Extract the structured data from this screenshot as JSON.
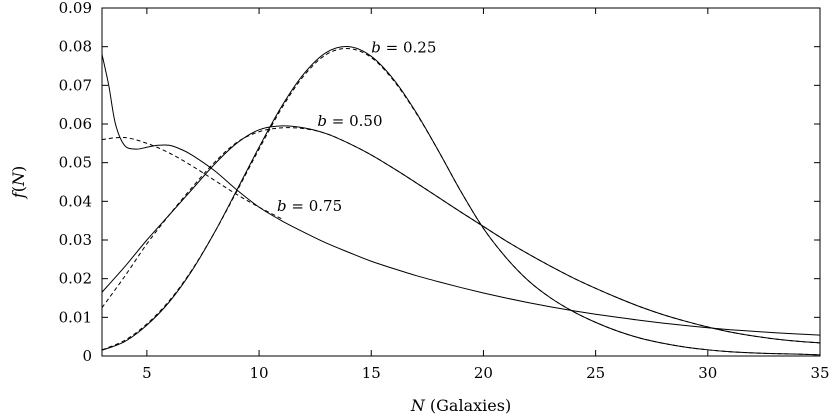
{
  "chart_data": {
    "type": "line",
    "xlabel_var": "N",
    "xlabel_rest": " (Galaxies)",
    "ylabel_var": "f",
    "ylabel_rest_open": "(",
    "ylabel_arg": "N",
    "ylabel_rest_close": ")",
    "xlim": [
      3,
      35
    ],
    "ylim": [
      0,
      0.09
    ],
    "xticks": [
      5,
      10,
      15,
      20,
      25,
      30,
      35
    ],
    "yticks": [
      0,
      0.01,
      0.02,
      0.03,
      0.04,
      0.05,
      0.06,
      0.07,
      0.08,
      0.09
    ],
    "ytick_labels": [
      "0",
      "0.01",
      "0.02",
      "0.03",
      "0.04",
      "0.05",
      "0.06",
      "0.07",
      "0.08",
      "0.09"
    ],
    "grid": false,
    "annotations": [
      {
        "var": "b",
        "text": " = 0.25",
        "x": 15.0,
        "y": 0.0785
      },
      {
        "var": "b",
        "text": " = 0.50",
        "x": 12.6,
        "y": 0.0595
      },
      {
        "var": "b",
        "text": " = 0.75",
        "x": 10.8,
        "y": 0.0375
      }
    ],
    "series": [
      {
        "style": "solid",
        "x": [
          3,
          4,
          5,
          6,
          7,
          8,
          9,
          10,
          11,
          12,
          13,
          14,
          15,
          16,
          17,
          18,
          19,
          20,
          21,
          22,
          23,
          24,
          25,
          26,
          27,
          28,
          29,
          30,
          31,
          32,
          33,
          34,
          35
        ],
        "y": [
          0.0015,
          0.0037,
          0.008,
          0.014,
          0.022,
          0.0318,
          0.0428,
          0.054,
          0.0645,
          0.073,
          0.0785,
          0.08,
          0.0775,
          0.0715,
          0.063,
          0.053,
          0.0425,
          0.033,
          0.0255,
          0.0195,
          0.015,
          0.0115,
          0.0087,
          0.0064,
          0.0046,
          0.0033,
          0.0023,
          0.0016,
          0.0011,
          0.0008,
          0.0006,
          0.0005,
          0.0003
        ]
      },
      {
        "style": "dashed",
        "x": [
          3,
          4,
          5,
          6,
          7,
          8,
          9,
          10,
          11,
          12,
          13,
          14,
          15,
          16,
          17,
          18,
          19,
          20,
          21,
          22,
          23,
          24,
          25,
          26,
          27,
          28,
          29,
          30,
          31,
          32,
          33,
          34,
          35
        ],
        "y": [
          0.0016,
          0.004,
          0.0083,
          0.0143,
          0.0222,
          0.0318,
          0.0425,
          0.0535,
          0.064,
          0.0725,
          0.078,
          0.0795,
          0.0772,
          0.0712,
          0.0628,
          0.053,
          0.0425,
          0.033,
          0.0255,
          0.0195,
          0.015,
          0.0115,
          0.0087,
          0.0064,
          0.0046,
          0.0033,
          0.0023,
          0.0016,
          0.0011,
          0.0008,
          0.0006,
          0.0005,
          0.0003
        ]
      },
      {
        "style": "solid",
        "x": [
          3,
          4,
          5,
          6,
          7,
          8,
          9,
          10,
          11,
          12,
          13,
          14,
          15,
          16,
          17,
          18,
          19,
          20,
          21,
          22,
          23,
          24,
          25,
          26,
          27,
          28,
          29,
          30,
          31,
          32,
          33,
          34,
          35
        ],
        "y": [
          0.0165,
          0.023,
          0.03,
          0.0365,
          0.043,
          0.0495,
          0.055,
          0.0585,
          0.0595,
          0.059,
          0.0575,
          0.055,
          0.052,
          0.0485,
          0.0448,
          0.041,
          0.0372,
          0.0335,
          0.0298,
          0.0264,
          0.0232,
          0.0202,
          0.0175,
          0.015,
          0.0127,
          0.0107,
          0.009,
          0.0075,
          0.0062,
          0.0052,
          0.0044,
          0.0038,
          0.0034
        ]
      },
      {
        "style": "dashed",
        "x": [
          3,
          4,
          5,
          6,
          7,
          8,
          9,
          10,
          11,
          12,
          13,
          14,
          15,
          16,
          17,
          18,
          19,
          20,
          21,
          22,
          23,
          24,
          25,
          26,
          27,
          28,
          29,
          30,
          31,
          32,
          33,
          34,
          35
        ],
        "y": [
          0.0125,
          0.0205,
          0.029,
          0.0365,
          0.0435,
          0.05,
          0.0552,
          0.058,
          0.059,
          0.0588,
          0.0575,
          0.055,
          0.052,
          0.0485,
          0.0448,
          0.041,
          0.0372,
          0.0335,
          0.0298,
          0.0264,
          0.0232,
          0.0202,
          0.0175,
          0.015,
          0.0127,
          0.0107,
          0.009,
          0.0075,
          0.0062,
          0.0052,
          0.0044,
          0.0038,
          0.0034
        ]
      },
      {
        "style": "solid",
        "x": [
          3,
          3.3,
          3.6,
          4,
          4.5,
          5,
          5.5,
          6,
          6.5,
          7,
          8,
          9,
          10,
          11,
          12,
          13,
          14,
          15,
          16,
          17,
          18,
          19,
          20,
          21,
          22,
          23,
          24,
          25,
          26,
          27,
          28,
          29,
          30,
          31,
          32,
          33,
          34,
          35
        ],
        "y": [
          0.078,
          0.07,
          0.06,
          0.0545,
          0.0535,
          0.054,
          0.0545,
          0.0545,
          0.0535,
          0.052,
          0.048,
          0.043,
          0.0385,
          0.035,
          0.032,
          0.0292,
          0.0268,
          0.0245,
          0.0226,
          0.0208,
          0.0192,
          0.0177,
          0.0163,
          0.015,
          0.0138,
          0.0127,
          0.0117,
          0.0108,
          0.01,
          0.0092,
          0.0085,
          0.0079,
          0.0073,
          0.0068,
          0.0064,
          0.006,
          0.0057,
          0.0054
        ]
      },
      {
        "style": "dashed",
        "x": [
          3,
          4,
          5,
          6,
          7,
          8,
          9,
          10,
          11
        ],
        "y": [
          0.056,
          0.0565,
          0.055,
          0.0525,
          0.0492,
          0.0455,
          0.0418,
          0.0385,
          0.0355
        ]
      }
    ]
  }
}
